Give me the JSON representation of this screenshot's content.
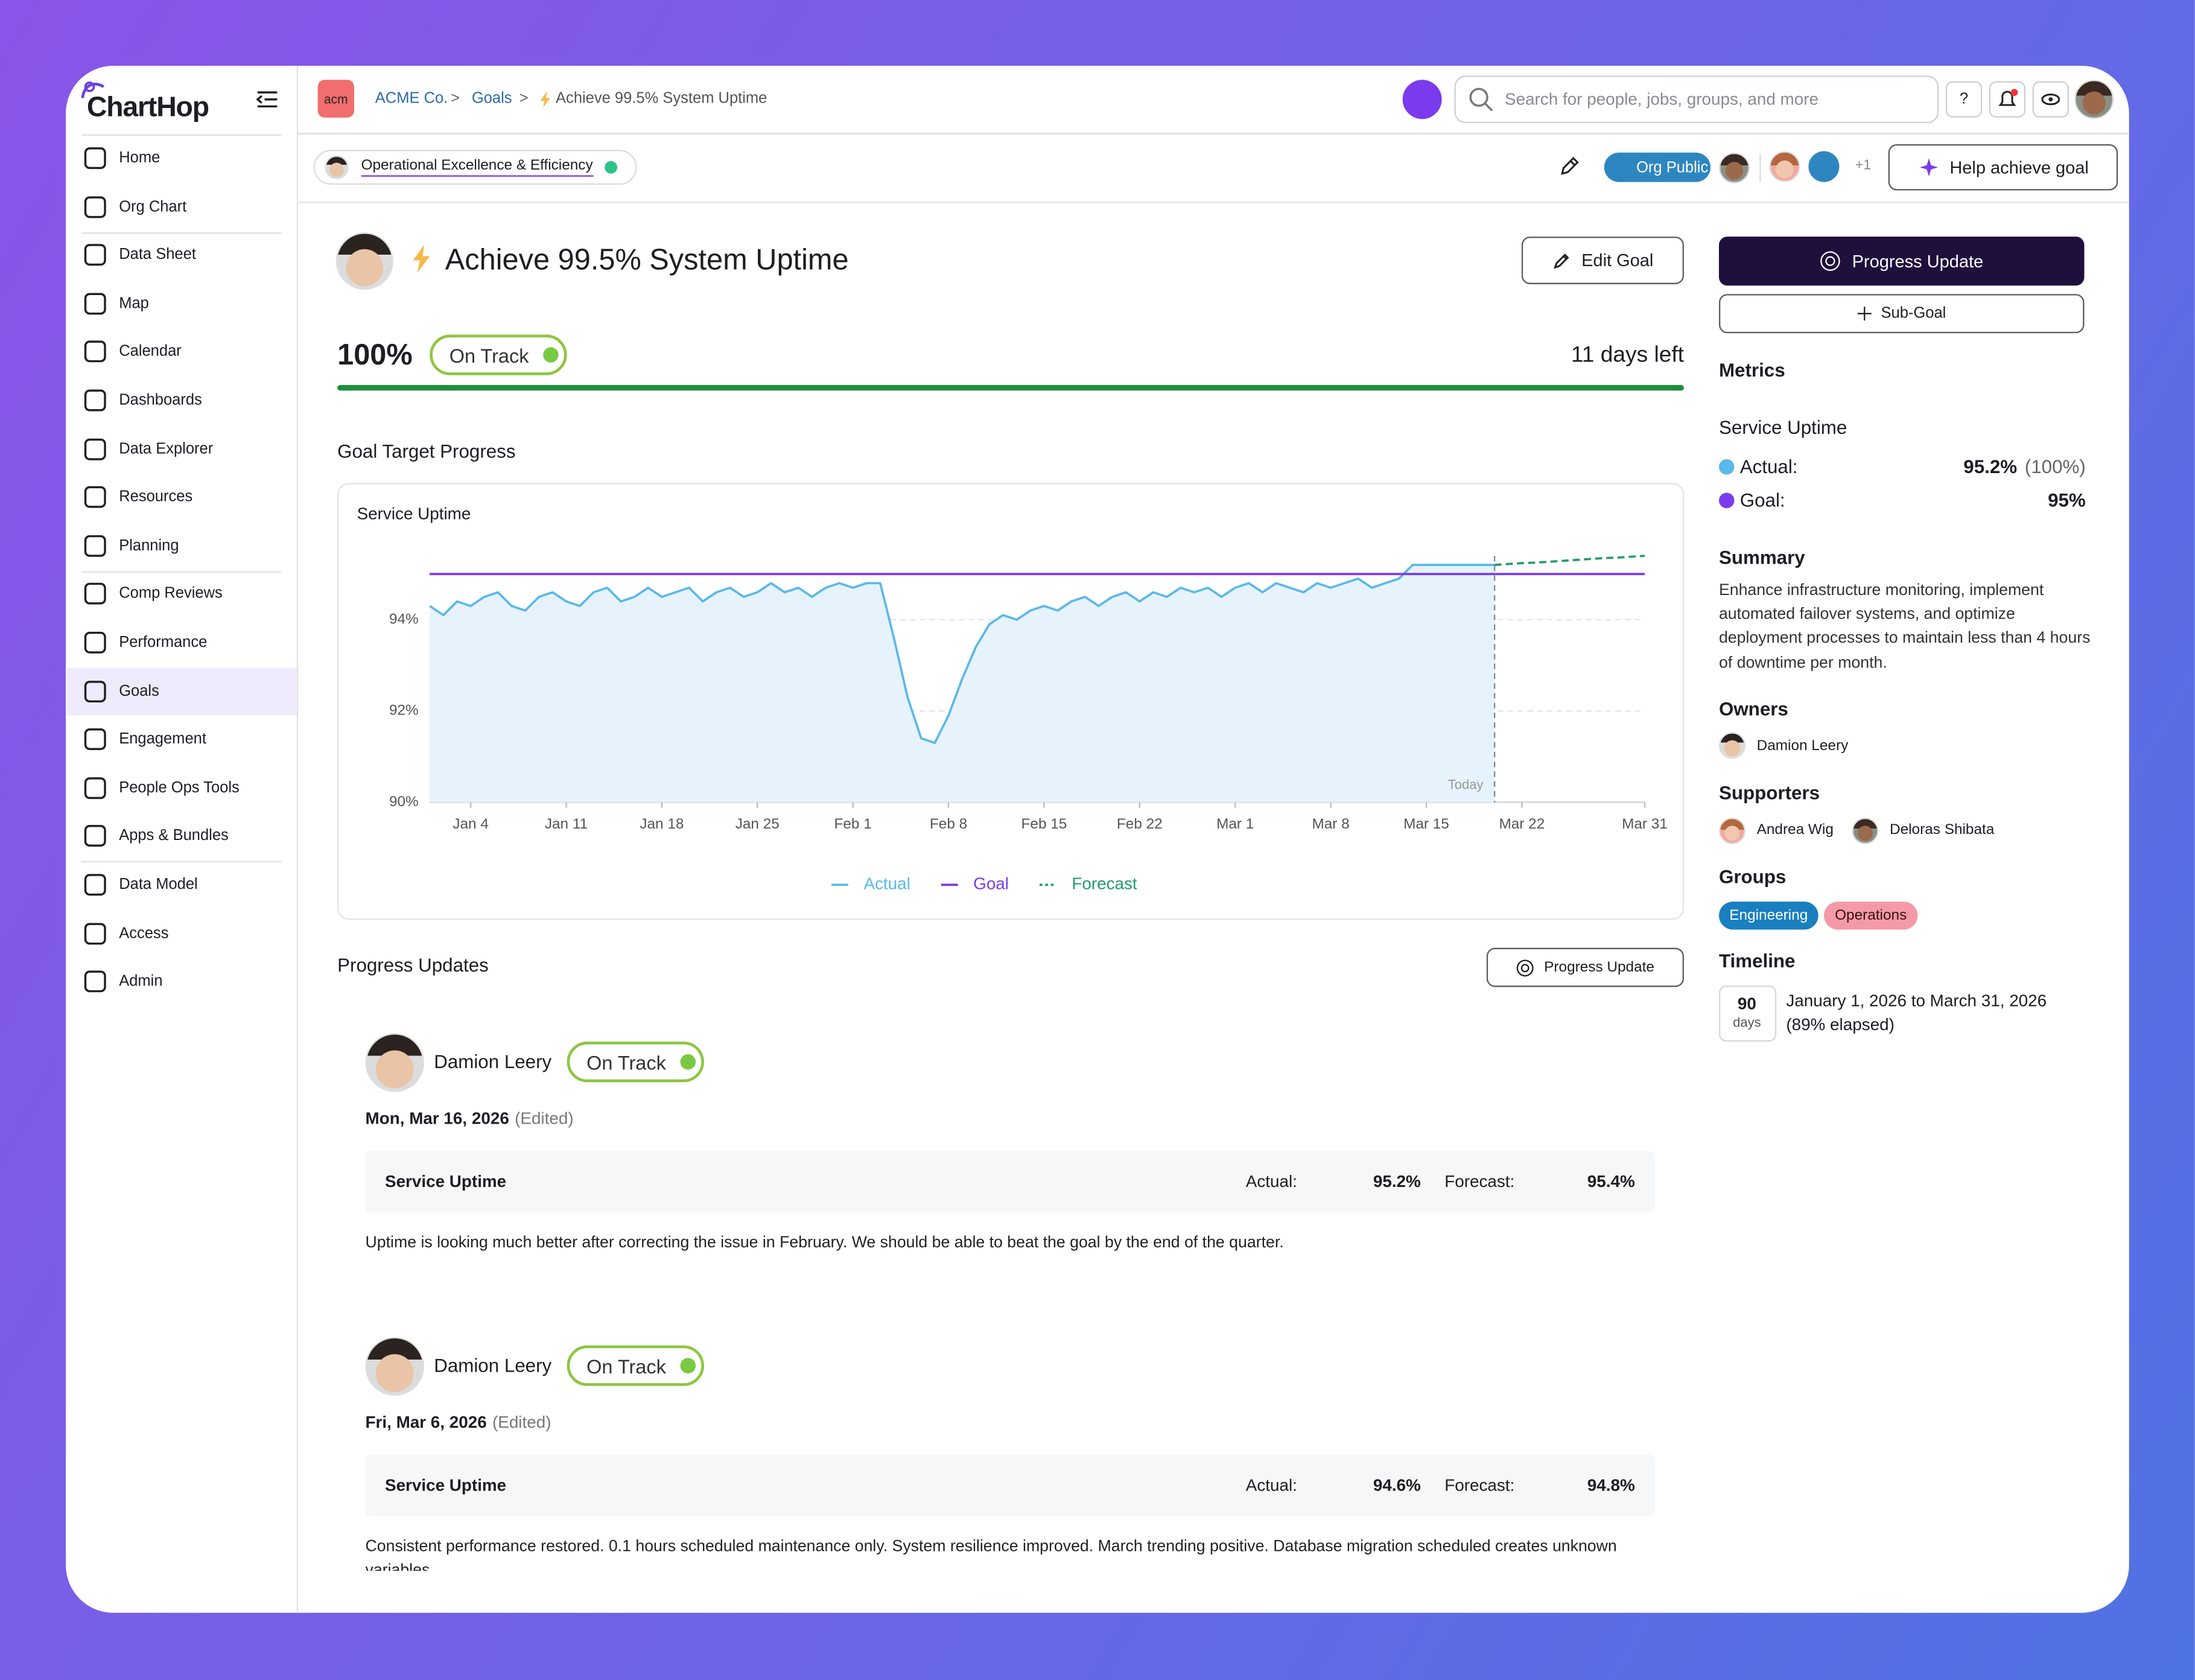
{
  "sidebar": {
    "logo": "ChartHop",
    "nav": [
      {
        "label": "Home"
      },
      {
        "label": "Org Chart"
      },
      {
        "label": "Data Sheet"
      },
      {
        "label": "Map"
      },
      {
        "label": "Calendar"
      },
      {
        "label": "Dashboards"
      },
      {
        "label": "Data Explorer"
      },
      {
        "label": "Resources"
      },
      {
        "label": "Planning"
      },
      {
        "label": "Comp Reviews"
      },
      {
        "label": "Performance"
      },
      {
        "label": "Goals",
        "active": true
      },
      {
        "label": "Engagement"
      },
      {
        "label": "People Ops Tools"
      },
      {
        "label": "Apps & Bundles"
      },
      {
        "label": "Data Model"
      },
      {
        "label": "Access"
      },
      {
        "label": "Admin"
      }
    ]
  },
  "header": {
    "company_badge": "acm",
    "breadcrumbs": [
      "ACME Co.",
      "Goals",
      "Achieve 99.5% System Uptime"
    ],
    "separator": ">",
    "search_placeholder": "Search for people, jobs, groups, and more",
    "help": "?"
  },
  "toolbar": {
    "parent_goal": "Operational Excellence & Efficiency",
    "visibility": "Org Public",
    "more_count": "+1",
    "help_button": "Help achieve goal"
  },
  "goal": {
    "title": "Achieve 99.5% System Uptime",
    "edit_button": "Edit Goal",
    "progress": "100%",
    "status": "On Track",
    "days_left": "11 days left",
    "section_title": "Goal Target Progress"
  },
  "chart_data": {
    "type": "line",
    "title": "Service Uptime",
    "annotation": "Today",
    "grid": true,
    "categories": [
      null,
      null,
      null,
      "Jan 4",
      null,
      null,
      null,
      null,
      null,
      null,
      "Jan 11",
      null,
      null,
      null,
      null,
      null,
      null,
      "Jan 18",
      null,
      null,
      null,
      null,
      null,
      null,
      "Jan 25",
      null,
      null,
      null,
      null,
      null,
      null,
      "Feb 1",
      null,
      null,
      null,
      null,
      null,
      null,
      "Feb 8",
      null,
      null,
      null,
      null,
      null,
      null,
      "Feb 15",
      null,
      null,
      null,
      null,
      null,
      null,
      "Feb 22",
      null,
      null,
      null,
      null,
      null,
      null,
      "Mar 1",
      null,
      null,
      null,
      null,
      null,
      null,
      "Mar 8",
      null,
      null,
      null,
      null,
      null,
      null,
      "Mar 15",
      null,
      null,
      null,
      null,
      null,
      null,
      "Mar 22",
      null,
      null,
      null,
      null,
      null,
      null,
      null,
      null,
      "Mar 31"
    ],
    "series": [
      {
        "name": "Actual",
        "color": "#5bb8ea",
        "fill": "#e7f3fc",
        "values": [
          94.3,
          94.1,
          94.4,
          94.3,
          94.5,
          94.6,
          94.3,
          94.2,
          94.5,
          94.6,
          94.4,
          94.3,
          94.6,
          94.7,
          94.4,
          94.5,
          94.7,
          94.5,
          94.6,
          94.7,
          94.4,
          94.6,
          94.7,
          94.5,
          94.6,
          94.8,
          94.6,
          94.7,
          94.5,
          94.7,
          94.8,
          94.7,
          94.8,
          94.8,
          93.6,
          92.3,
          91.4,
          91.3,
          91.9,
          92.7,
          93.4,
          93.9,
          94.1,
          94.0,
          94.2,
          94.3,
          94.2,
          94.4,
          94.5,
          94.3,
          94.5,
          94.6,
          94.4,
          94.6,
          94.5,
          94.7,
          94.6,
          94.7,
          94.5,
          94.7,
          94.8,
          94.6,
          94.8,
          94.7,
          94.6,
          94.8,
          94.7,
          94.8,
          94.9,
          94.7,
          94.8,
          94.9,
          95.2,
          95.2,
          95.2,
          95.2,
          95.2,
          95.2,
          95.2,
          null,
          null,
          null,
          null,
          null,
          null,
          null,
          null,
          null,
          null,
          null
        ]
      },
      {
        "name": "Goal",
        "color": "#7c3aed",
        "values": [
          95,
          95,
          95,
          95,
          95,
          95,
          95,
          95,
          95,
          95,
          95,
          95,
          95,
          95,
          95,
          95,
          95,
          95,
          95,
          95,
          95,
          95,
          95,
          95,
          95,
          95,
          95,
          95,
          95,
          95,
          95,
          95,
          95,
          95,
          95,
          95,
          95,
          95,
          95,
          95,
          95,
          95,
          95,
          95,
          95,
          95,
          95,
          95,
          95,
          95,
          95,
          95,
          95,
          95,
          95,
          95,
          95,
          95,
          95,
          95,
          95,
          95,
          95,
          95,
          95,
          95,
          95,
          95,
          95,
          95,
          95,
          95,
          95,
          95,
          95,
          95,
          95,
          95,
          95,
          95,
          95,
          95,
          95,
          95,
          95,
          95,
          95,
          95,
          95,
          95
        ]
      },
      {
        "name": "Forecast",
        "color": "#1f9d6b",
        "dashed": true,
        "values": [
          null,
          null,
          null,
          null,
          null,
          null,
          null,
          null,
          null,
          null,
          null,
          null,
          null,
          null,
          null,
          null,
          null,
          null,
          null,
          null,
          null,
          null,
          null,
          null,
          null,
          null,
          null,
          null,
          null,
          null,
          null,
          null,
          null,
          null,
          null,
          null,
          null,
          null,
          null,
          null,
          null,
          null,
          null,
          null,
          null,
          null,
          null,
          null,
          null,
          null,
          null,
          null,
          null,
          null,
          null,
          null,
          null,
          null,
          null,
          null,
          null,
          null,
          null,
          null,
          null,
          null,
          null,
          null,
          null,
          null,
          null,
          null,
          null,
          null,
          null,
          null,
          null,
          null,
          95.2,
          95.22,
          95.24,
          95.25,
          95.27,
          95.29,
          95.31,
          95.33,
          95.35,
          95.36,
          95.38,
          95.4
        ]
      }
    ],
    "ylim": [
      90,
      95.4
    ],
    "yticks": [
      {
        "value": 90,
        "label": "90%"
      },
      {
        "value": 92,
        "label": "92%"
      },
      {
        "value": 94,
        "label": "94%"
      }
    ]
  },
  "updates": {
    "title": "Progress Updates",
    "button": "Progress Update",
    "items": [
      {
        "name": "Damion Leery",
        "status": "On Track",
        "date": "Mon, Mar 16, 2026",
        "edited": "(Edited)",
        "metric": "Service Uptime",
        "actual_label": "Actual:",
        "actual": "95.2%",
        "forecast_label": "Forecast:",
        "forecast": "95.4%",
        "comment": "Uptime is looking much better after correcting the issue in February. We should be able to beat the goal by the end of the quarter."
      },
      {
        "name": "Damion Leery",
        "status": "On Track",
        "date": "Fri, Mar 6, 2026",
        "edited": "(Edited)",
        "metric": "Service Uptime",
        "actual_label": "Actual:",
        "actual": "94.6%",
        "forecast_label": "Forecast:",
        "forecast": "94.8%",
        "comment": "Consistent performance restored. 0.1 hours scheduled maintenance only. System resilience improved. March trending positive. Database migration scheduled creates unknown variables."
      }
    ]
  },
  "panel": {
    "progress_button": "Progress Update",
    "subgoal_button": "Sub-Goal",
    "metrics_title": "Metrics",
    "metric_name": "Service Uptime",
    "actual_label": "Actual:",
    "actual": "95.2%",
    "actual_pct": "(100%)",
    "goal_label": "Goal:",
    "goal": "95%",
    "summary_title": "Summary",
    "summary": "Enhance infrastructure monitoring, implement automated failover systems, and optimize deployment processes to maintain less than 4 hours of downtime per month.",
    "owners_title": "Owners",
    "owners": [
      "Damion Leery"
    ],
    "supporters_title": "Supporters",
    "supporters": [
      "Andrea Wig",
      "Deloras Shibata"
    ],
    "groups_title": "Groups",
    "groups": [
      "Engineering",
      "Operations"
    ],
    "timeline_title": "Timeline",
    "timeline_days": "90",
    "timeline_unit": "days",
    "timeline_range": "January 1, 2026 to March 31, 2026",
    "timeline_elapsed": "(89% elapsed)"
  }
}
